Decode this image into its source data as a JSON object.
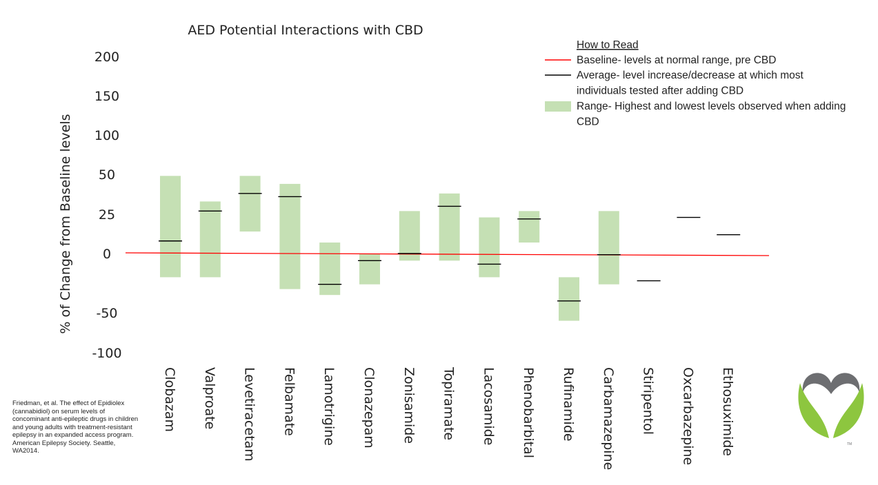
{
  "chart_data": {
    "type": "range",
    "title": "AED Potential Interactions with CBD",
    "ylabel": "% of Change from Baseline levels",
    "yticks": [
      "200",
      "150",
      "100",
      "50",
      "25",
      "0",
      "-50",
      "-100"
    ],
    "baseline": 0,
    "categories": [
      "Clobazam",
      "Valproate",
      "Levetiracetam",
      "Felbamate",
      "Lamotrigine",
      "Clonazepam",
      "Zonisamide",
      "Topiramate",
      "Lacosamide",
      "Phenobarbital",
      "Rufinamide",
      "Carbamazepine",
      "Stiripentol",
      "Oxcarbazepine",
      "Ethosuximide"
    ],
    "range_low": [
      -20,
      -20,
      14,
      -30,
      -35,
      -26,
      -6,
      -6,
      -20,
      7,
      -60,
      -26,
      null,
      null,
      null
    ],
    "range_high": [
      49,
      33,
      49,
      44,
      7,
      0,
      27,
      38,
      23,
      27,
      -20,
      27,
      null,
      null,
      null
    ],
    "average": [
      8,
      27,
      38,
      36,
      -26,
      -6,
      0,
      30,
      -9,
      22,
      -40,
      -1,
      -23,
      23,
      12
    ],
    "colors": {
      "range": "#c5e0b4",
      "baseline": "#ff0000",
      "average": "#000000"
    }
  },
  "legend": {
    "heading": "How to Read",
    "items": [
      {
        "key": "baseline",
        "text_lines": [
          "Baseline- levels at normal range, pre CBD"
        ]
      },
      {
        "key": "average",
        "text_lines": [
          "Average- level increase/decrease at which most",
          "individuals tested after adding CBD"
        ]
      },
      {
        "key": "range",
        "text_lines": [
          "Range- Highest and lowest levels observed when adding",
          "CBD"
        ]
      }
    ]
  },
  "citation": "Friedman, et al. The effect of Epidiolex (cannabidiol) on serum levels of concominant anti-epileptic drugs in children and young adults with treatment-resistant epilepsy in an expanded access program. American Epilepsy Society. Seattle, WA2014.",
  "logo": {
    "icon": "heart-leaf-logo",
    "mark": "TM",
    "colors": {
      "heart": "#6d6e71",
      "leaves": "#8dc63f"
    }
  }
}
